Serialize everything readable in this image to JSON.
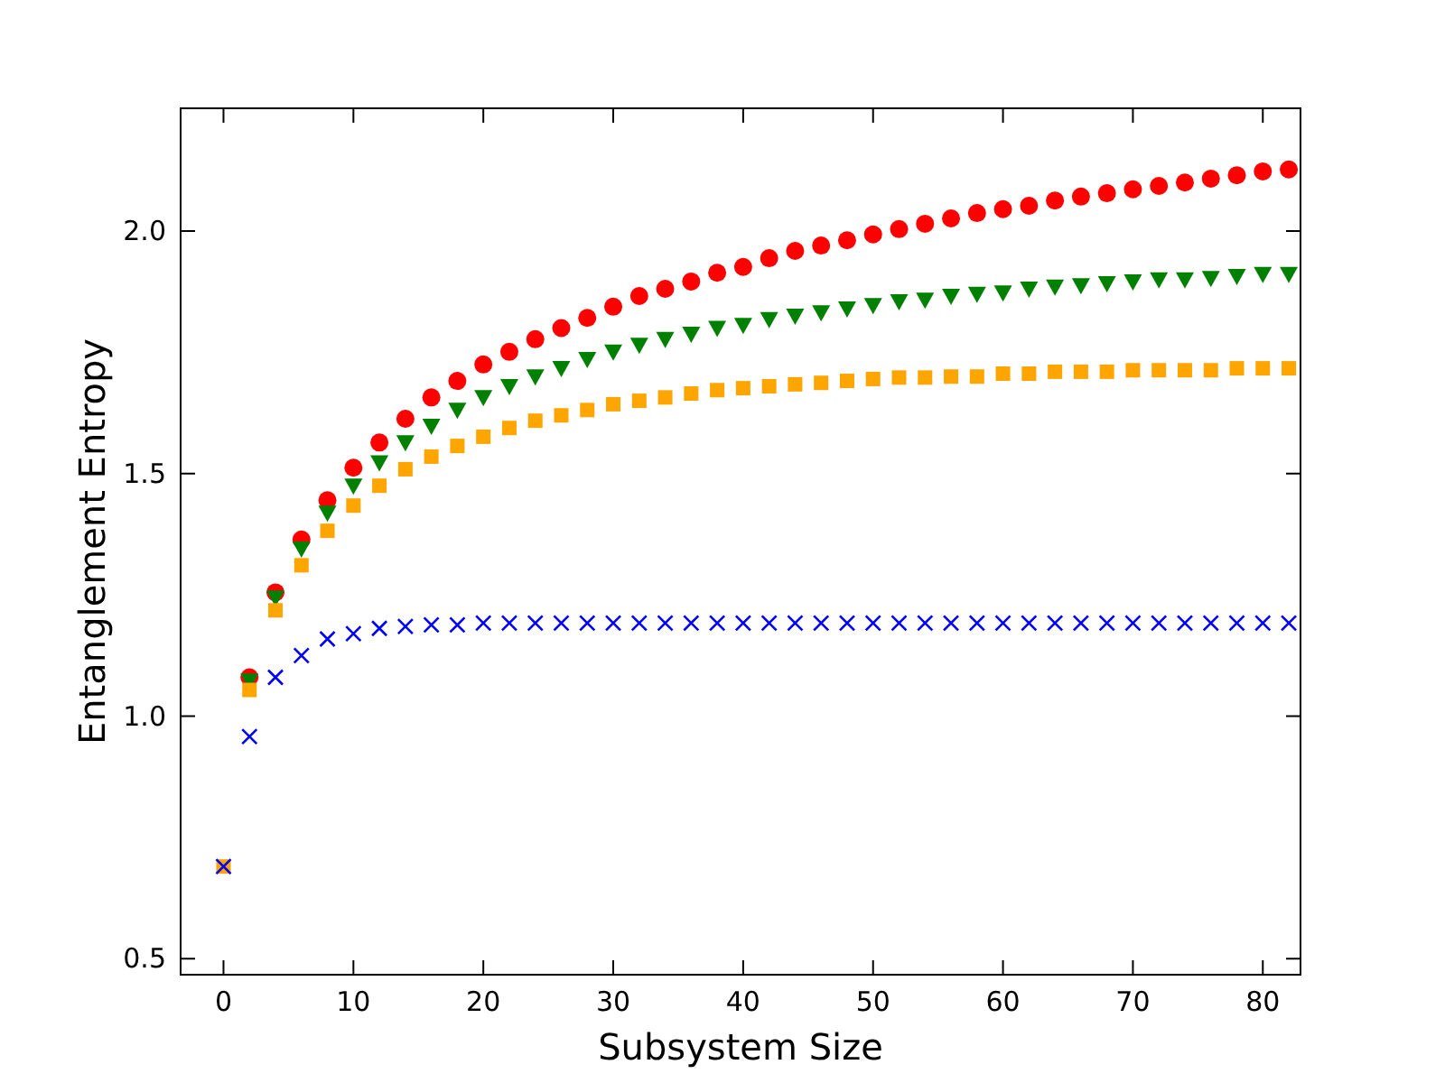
{
  "chart_data": {
    "type": "scatter",
    "xlabel": "Subsystem Size",
    "ylabel": "Entanglement Entropy",
    "x": [
      0,
      2,
      4,
      6,
      8,
      10,
      12,
      14,
      16,
      18,
      20,
      22,
      24,
      26,
      28,
      30,
      32,
      34,
      36,
      38,
      40,
      42,
      44,
      46,
      48,
      50,
      52,
      54,
      56,
      58,
      60,
      62,
      64,
      66,
      68,
      70,
      72,
      74,
      76,
      78,
      80,
      82
    ],
    "series": [
      {
        "color": "#ff0000",
        "marker": "circle",
        "values": [
          null,
          1.08,
          1.255,
          1.364,
          1.445,
          1.512,
          1.564,
          1.613,
          1.657,
          1.691,
          1.725,
          1.751,
          1.777,
          1.8,
          1.821,
          1.844,
          1.866,
          1.881,
          1.896,
          1.914,
          1.926,
          1.944,
          1.959,
          1.97,
          1.981,
          1.993,
          2.004,
          2.015,
          2.026,
          2.037,
          2.045,
          2.052,
          2.063,
          2.071,
          2.078,
          2.086,
          2.093,
          2.1,
          2.108,
          2.115,
          2.123,
          2.127
        ]
      },
      {
        "color": "#008000",
        "marker": "triangle",
        "values": [
          null,
          1.073,
          1.244,
          1.345,
          1.419,
          1.475,
          1.523,
          1.564,
          1.598,
          1.631,
          1.657,
          1.68,
          1.7,
          1.717,
          1.736,
          1.751,
          1.765,
          1.777,
          1.788,
          1.8,
          1.806,
          1.818,
          1.825,
          1.832,
          1.84,
          1.847,
          1.855,
          1.858,
          1.866,
          1.87,
          1.873,
          1.881,
          1.885,
          1.888,
          1.892,
          1.896,
          1.9,
          1.9,
          1.903,
          1.907,
          1.911,
          1.911
        ]
      },
      {
        "color": "#ffa500",
        "marker": "square",
        "values": [
          0.69,
          1.054,
          1.218,
          1.311,
          1.382,
          1.434,
          1.475,
          1.509,
          1.535,
          1.557,
          1.576,
          1.594,
          1.609,
          1.62,
          1.631,
          1.643,
          1.65,
          1.657,
          1.665,
          1.672,
          1.676,
          1.68,
          1.684,
          1.687,
          1.691,
          1.695,
          1.698,
          1.698,
          1.7,
          1.7,
          1.706,
          1.706,
          1.71,
          1.71,
          1.71,
          1.713,
          1.713,
          1.713,
          1.713,
          1.717,
          1.717,
          1.717
        ]
      },
      {
        "color": "#0000ff",
        "marker": "cross",
        "values": [
          0.69,
          0.958,
          1.08,
          1.125,
          1.159,
          1.17,
          1.181,
          1.185,
          1.188,
          1.188,
          1.192,
          1.192,
          1.192,
          1.192,
          1.192,
          1.192,
          1.192,
          1.192,
          1.192,
          1.192,
          1.192,
          1.192,
          1.192,
          1.192,
          1.192,
          1.192,
          1.192,
          1.192,
          1.192,
          1.192,
          1.192,
          1.192,
          1.192,
          1.192,
          1.192,
          1.192,
          1.192,
          1.192,
          1.192,
          1.192,
          1.192,
          1.192
        ]
      }
    ],
    "xlim": [
      -3.3,
      82.9
    ],
    "xticks": [
      0,
      10,
      20,
      30,
      40,
      50,
      60,
      70,
      80
    ],
    "ylim": [
      0.467,
      2.253
    ],
    "yticks": [
      {
        "value": 0.5,
        "label": "0.5"
      },
      {
        "value": 1,
        "label": "1.0"
      },
      {
        "value": 1.5,
        "label": "1.5"
      },
      {
        "value": 2,
        "label": "2.0"
      }
    ],
    "grid": false
  }
}
